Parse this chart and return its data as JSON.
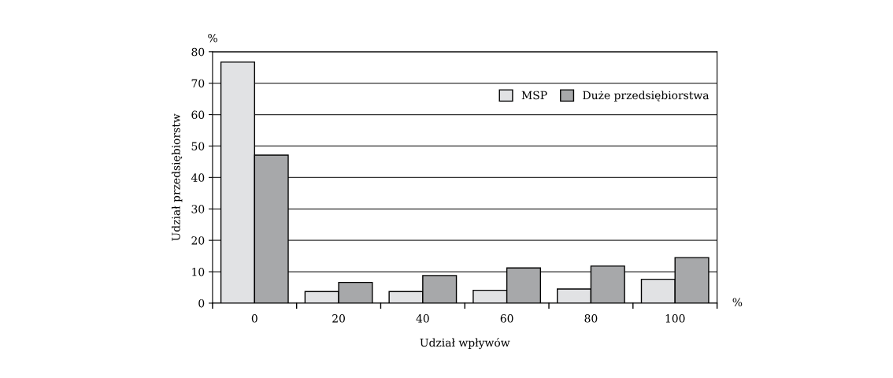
{
  "chart_data": {
    "type": "bar",
    "xlabel": "Udział wpływów",
    "ylabel": "Udział przedsiębiorstw",
    "categories": [
      "0",
      "20",
      "40",
      "60",
      "80",
      "100"
    ],
    "series": [
      {
        "name": "MSP",
        "color": "#e1e2e4",
        "values": [
          76.7,
          3.7,
          3.7,
          4.1,
          4.5,
          7.6
        ]
      },
      {
        "name": "Duże przedsiębiorstwa",
        "color": "#a7a8aa",
        "values": [
          47.1,
          6.6,
          8.8,
          11.2,
          11.8,
          14.5
        ]
      }
    ],
    "ylim": [
      0,
      80
    ],
    "yticks": [
      0,
      10,
      20,
      30,
      40,
      50,
      60,
      70,
      80
    ],
    "grid": "y",
    "legend": "top right",
    "annotations": [
      "%",
      "%"
    ]
  }
}
